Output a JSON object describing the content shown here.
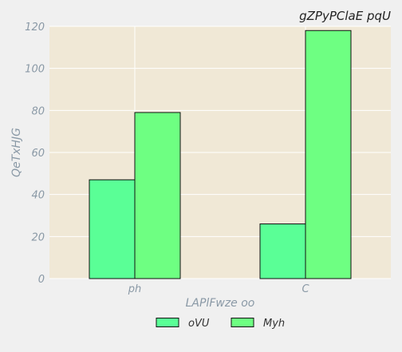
{
  "chart_data": {
    "type": "bar",
    "title": "gZPyPClaE  pqU",
    "xlabel": "LAPlFwze oo",
    "ylabel": "QeTxHJG",
    "categories": [
      "ph",
      "C"
    ],
    "series": [
      {
        "name": "oVU",
        "values": [
          47,
          26
        ],
        "color": "#5aff96"
      },
      {
        "name": "Myh",
        "values": [
          79,
          118
        ],
        "color": "#6eff82"
      }
    ],
    "ylim": [
      0,
      120
    ],
    "yticks": [
      0,
      20,
      40,
      60,
      80,
      100,
      120
    ],
    "grid": true,
    "legend_position": "bottom-center",
    "colors": {
      "plot_background": "#f0e8d6",
      "page_background": "#f0f0f0",
      "grid": "#ffffff",
      "bar_edge": "#111111"
    }
  }
}
